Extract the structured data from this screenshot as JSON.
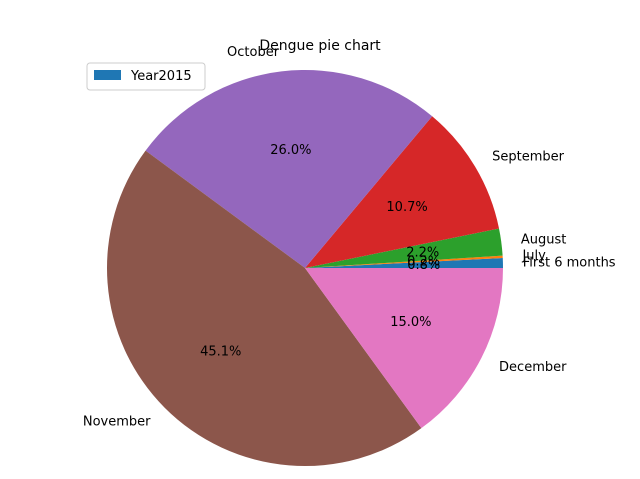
{
  "chart_data": {
    "type": "pie",
    "title": "Dengue pie chart",
    "series_name": "Year2015",
    "categories": [
      "First 6 months",
      "July",
      "August",
      "September",
      "October",
      "November",
      "December"
    ],
    "values": [
      0.8,
      0.2,
      2.2,
      10.7,
      26.0,
      45.1,
      15.0
    ],
    "value_labels": [
      "0.8%",
      "0.2%",
      "2.2%",
      "10.7%",
      "26.0%",
      "45.1%",
      "15.0%"
    ],
    "colors": [
      "#1f77b4",
      "#ff7f0e",
      "#2ca02c",
      "#d62728",
      "#9467bd",
      "#8c564b",
      "#e377c2"
    ],
    "legend": {
      "placement": "top-left",
      "entries": [
        "Year2015"
      ],
      "swatch_color": "#1f77b4"
    }
  }
}
